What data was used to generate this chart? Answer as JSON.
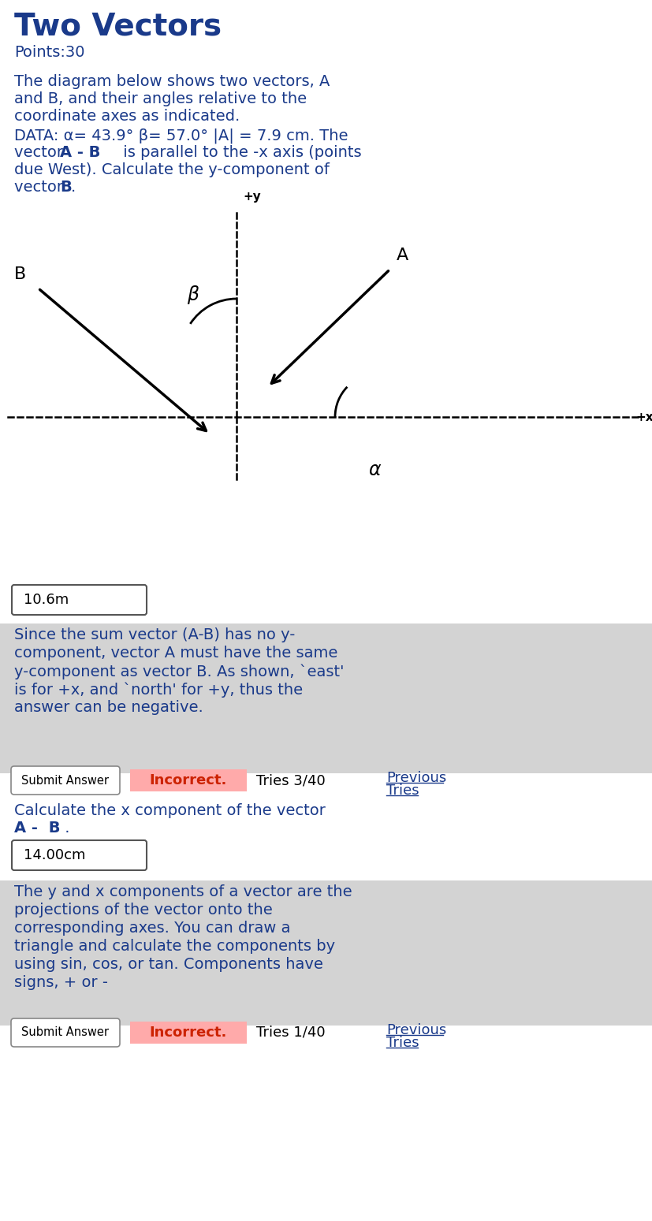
{
  "title": "Two Vectors",
  "title_color": "#1a3a8a",
  "title_fontsize": 28,
  "bg_color": "#ffffff",
  "points_text": "Points:30",
  "desc_line1": "The diagram below shows two vectors, A",
  "desc_line2": "and B, and their angles relative to the",
  "desc_line3": "coordinate axes as indicated.",
  "data_line1": "DATA: α= 43.9° β= 57.0° |A| = 7.9 cm. The",
  "data_line2a": "vector ",
  "data_line2b": "A - B",
  "data_line2c": " is parallel to the -x axis (points",
  "data_line3": "due West). Calculate the y-component of",
  "data_line4a": "vector ",
  "data_line4b": "B",
  "data_line4c": ".",
  "input_text1": "10.6m",
  "feedback1_line1": "Since the sum vector (A-B) has no y-",
  "feedback1_line2": "component, vector A must have the same",
  "feedback1_line3": "y-component as vector B. As shown, `east'",
  "feedback1_line4": "is for +x, and `north' for +y, thus the",
  "feedback1_line5": "answer can be negative.",
  "submit_btn_text": "Submit Answer",
  "incorrect1": "Incorrect.",
  "tries1": "Tries 3/40",
  "prev_tries1_line1": "Previous",
  "prev_tries1_line2": "Tries",
  "calc_line1": "Calculate the x component of the vector ",
  "calc_bold1": "A -",
  "calc_line2_bold": "B",
  "calc_line2_dot": " .",
  "input_text2": "14.00cm",
  "feedback2_line1": "The y and x components of a vector are the",
  "feedback2_line2": "projections of the vector onto the",
  "feedback2_line3": "corresponding axes. You can draw a",
  "feedback2_line4": "triangle and calculate the components by",
  "feedback2_line5": "using sin, cos, or tan. Components have",
  "feedback2_line6": "signs, + or -",
  "incorrect2": "Incorrect.",
  "tries2": "Tries 1/40",
  "prev_tries2_line1": "Previous",
  "prev_tries2_line2": "Tries",
  "text_color": "#1a3a8a",
  "gray_bg": "#d3d3d3",
  "incorrect_bg": "#ffaaaa",
  "incorrect_color": "#cc2200",
  "alpha_deg": 43.9,
  "beta_deg": 57.0
}
